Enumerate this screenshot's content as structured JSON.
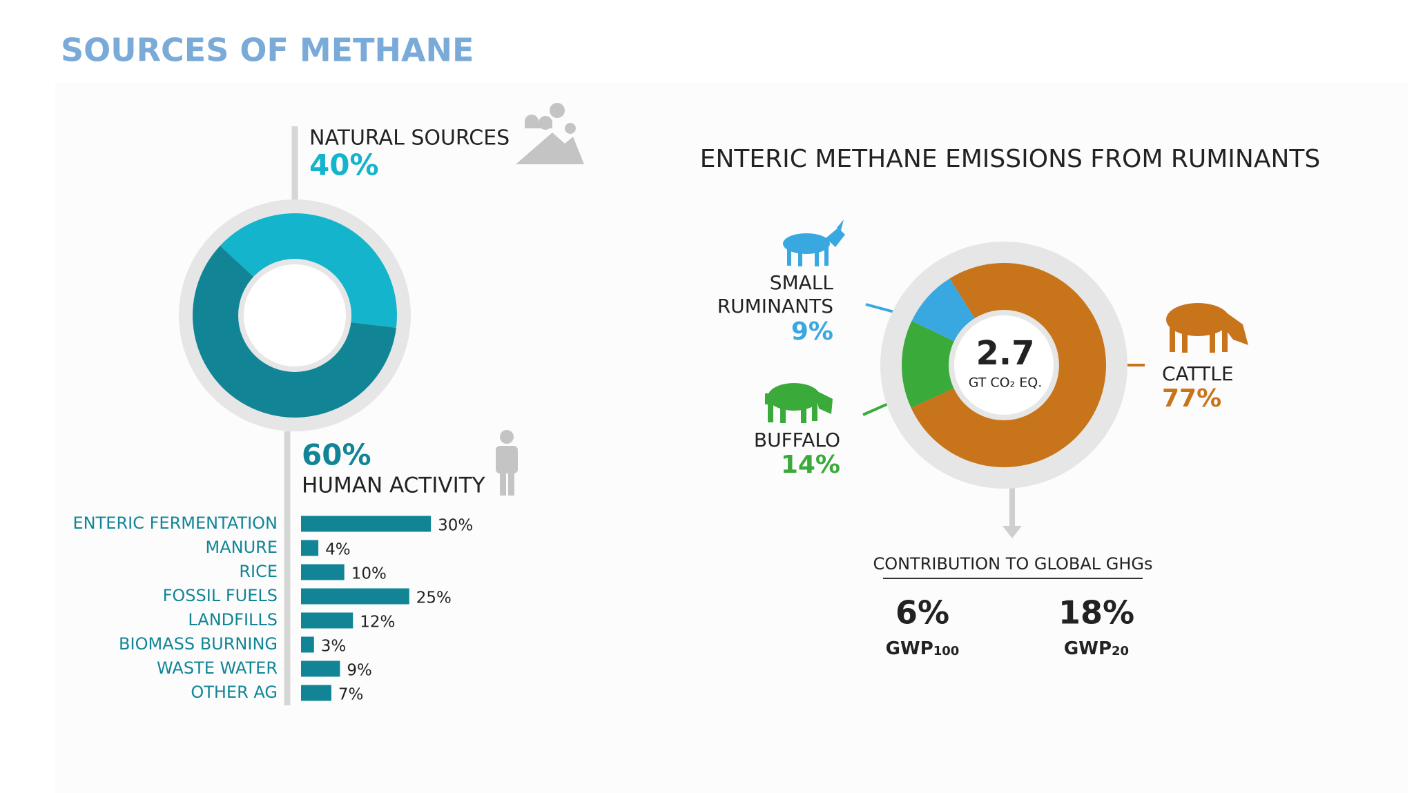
{
  "title": "SOURCES OF METHANE",
  "chart_data": [
    {
      "type": "pie",
      "categories": [
        "NATURAL SOURCES",
        "HUMAN ACTIVITY"
      ],
      "values": [
        40,
        60
      ],
      "value_labels": [
        "40%",
        "60%"
      ],
      "colors": [
        "#14b4cc",
        "#118596"
      ]
    },
    {
      "type": "bar",
      "categories": [
        "ENTERIC FERMENTATION",
        "MANURE",
        "RICE",
        "FOSSIL FUELS",
        "LANDFILLS",
        "BIOMASS BURNING",
        "WASTE WATER",
        "OTHER AG"
      ],
      "values": [
        30,
        4,
        10,
        25,
        12,
        3,
        9,
        7
      ],
      "value_labels": [
        "30%",
        "4%",
        "10%",
        "25%",
        "12%",
        "3%",
        "9%",
        "7%"
      ],
      "color": "#118596"
    },
    {
      "type": "pie",
      "title": "ENTERIC METHANE EMISSIONS FROM RUMINANTS",
      "categories": [
        "CATTLE",
        "BUFFALO",
        "SMALL RUMINANTS"
      ],
      "values": [
        77,
        14,
        9
      ],
      "value_labels": [
        "77%",
        "14%",
        "9%"
      ],
      "colors": [
        "#c8741a",
        "#3aaa3a",
        "#3aa8e0"
      ],
      "center_value": 2.7,
      "center_label": "GT CO₂ EQ."
    }
  ],
  "contribution": {
    "title": "CONTRIBUTION TO GLOBAL GHGs",
    "items": [
      {
        "value": "6%",
        "label": "GWP",
        "sub": "100"
      },
      {
        "value": "18%",
        "label": "GWP",
        "sub": "20"
      }
    ]
  }
}
